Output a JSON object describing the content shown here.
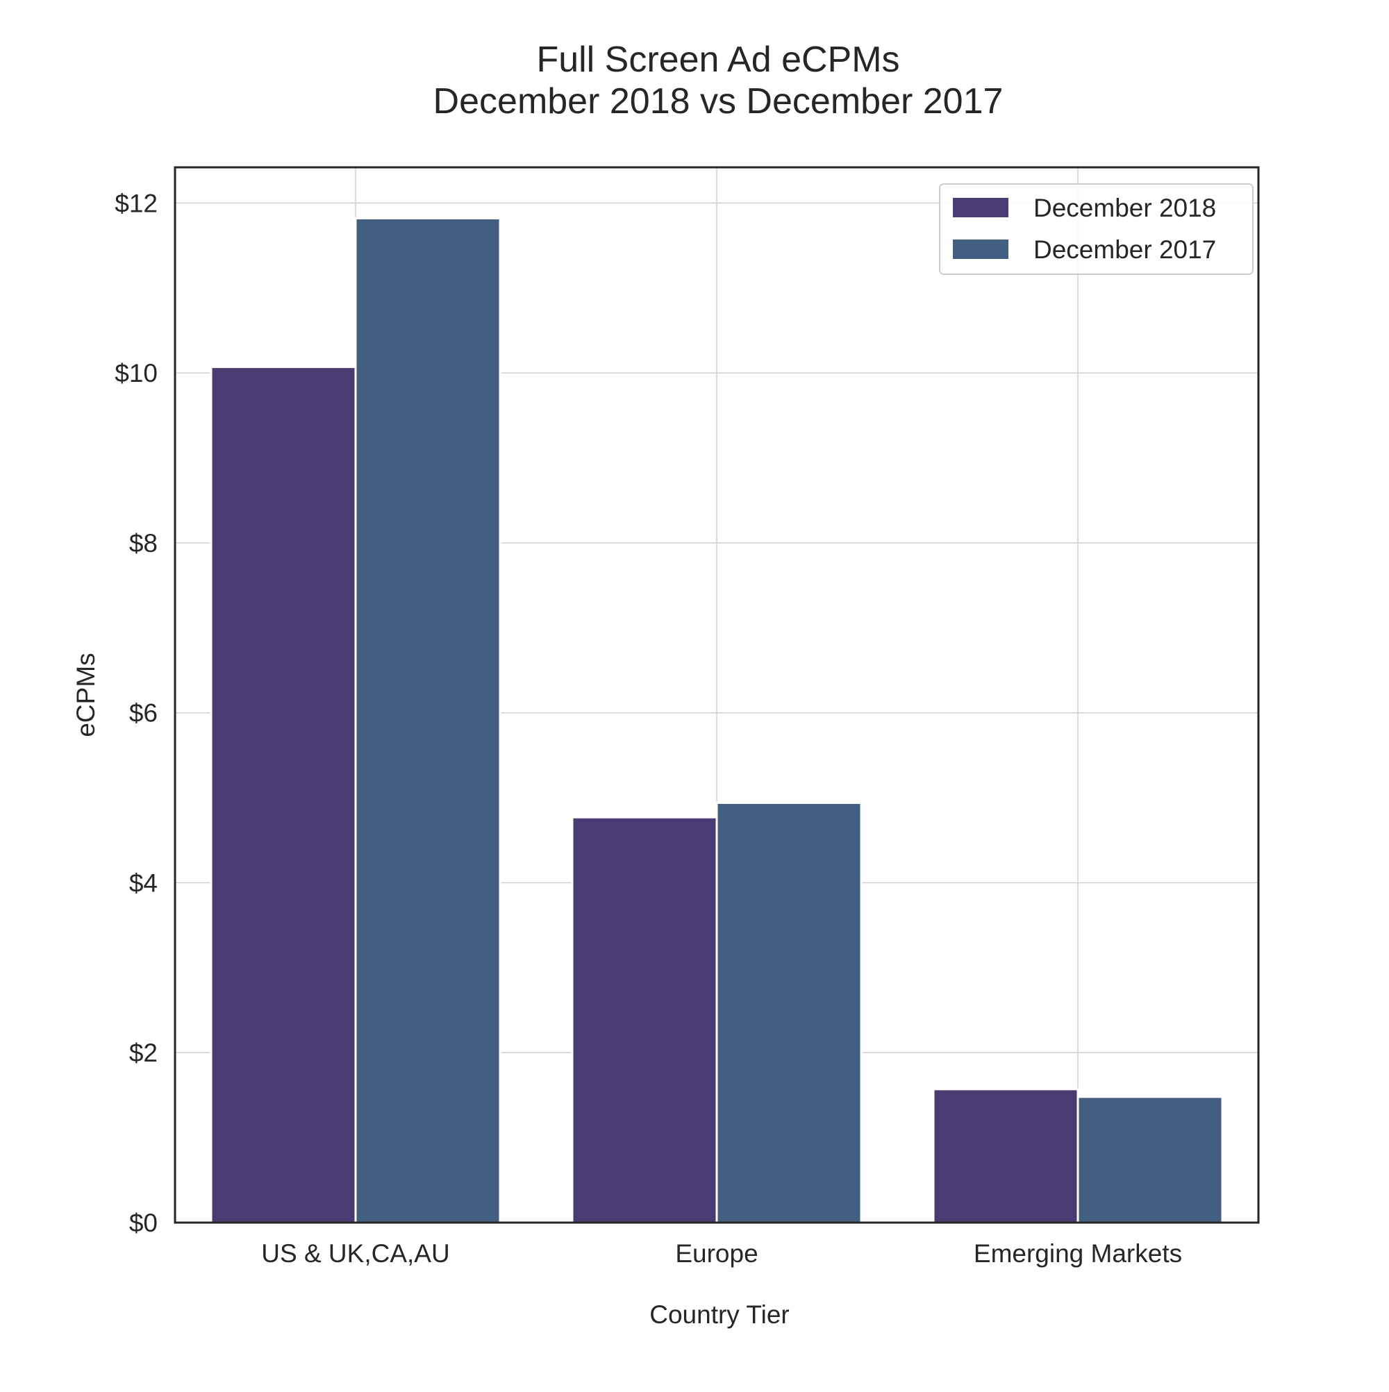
{
  "chart_data": {
    "type": "bar",
    "title_line1": "Full Screen Ad eCPMs",
    "title_line2": "December 2018 vs December 2017",
    "xlabel": "Country Tier",
    "ylabel": "eCPMs",
    "categories": [
      "US & UK,CA,AU",
      "Europe",
      "Emerging Markets"
    ],
    "series": [
      {
        "name": "December 2018",
        "color": "#4a3b72",
        "values": [
          10.07,
          4.77,
          1.57
        ]
      },
      {
        "name": "December 2017",
        "color": "#425e80",
        "values": [
          11.82,
          4.94,
          1.48
        ]
      }
    ],
    "yticks": [
      0,
      2,
      4,
      6,
      8,
      10,
      12
    ],
    "ytick_labels": [
      "$0",
      "$2",
      "$4",
      "$6",
      "$8",
      "$10",
      "$12"
    ],
    "ylim": [
      0,
      12.42
    ],
    "grid": true,
    "legend_position": "top-right"
  }
}
